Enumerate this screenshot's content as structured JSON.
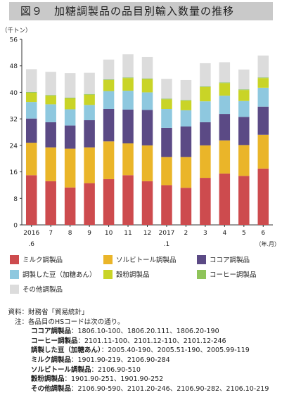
{
  "title": "図９　加糖調製品の品目別輸入数量の推移",
  "chart_data": {
    "type": "bar",
    "stacked": true,
    "unit_label": "（千トン）",
    "x_unit_label": "（年.月）",
    "categories": [
      "2016.6",
      "7",
      "8",
      "9",
      "10",
      "11",
      "12",
      "2017.1",
      "2",
      "3",
      "4",
      "5",
      "6"
    ],
    "tick_labels": [
      {
        "main": "2016",
        "sub": ".6"
      },
      {
        "main": "7",
        "sub": ""
      },
      {
        "main": "8",
        "sub": ""
      },
      {
        "main": "9",
        "sub": ""
      },
      {
        "main": "10",
        "sub": ""
      },
      {
        "main": "11",
        "sub": ""
      },
      {
        "main": "12",
        "sub": ""
      },
      {
        "main": "2017",
        "sub": ".1"
      },
      {
        "main": "2",
        "sub": ""
      },
      {
        "main": "3",
        "sub": ""
      },
      {
        "main": "4",
        "sub": ""
      },
      {
        "main": "5",
        "sub": ""
      },
      {
        "main": "6",
        "sub": ""
      }
    ],
    "ylim": [
      0,
      56
    ],
    "yticks": [
      0,
      8,
      16,
      24,
      32,
      40,
      48,
      56
    ],
    "grid": false,
    "series": [
      {
        "name": "ミルク調製品",
        "color": "#cd4b4e",
        "values": [
          15.0,
          13.2,
          11.3,
          12.6,
          13.8,
          15.0,
          13.2,
          12.0,
          11.2,
          14.2,
          15.5,
          14.8,
          17.0
        ]
      },
      {
        "name": "ソルビトール調製品",
        "color": "#eab529",
        "values": [
          9.8,
          10.2,
          11.7,
          10.8,
          11.4,
          9.6,
          10.8,
          8.5,
          9.3,
          9.8,
          10.0,
          9.3,
          10.2
        ]
      },
      {
        "name": "ココア調製品",
        "color": "#5b4a85",
        "values": [
          7.3,
          7.6,
          7.0,
          8.2,
          9.8,
          10.2,
          10.7,
          8.8,
          9.2,
          7.0,
          8.0,
          8.5,
          8.5
        ]
      },
      {
        "name": "調製した豆（加糖あん）",
        "color": "#8ec8df",
        "values": [
          5.0,
          5.4,
          4.9,
          4.6,
          5.4,
          5.7,
          5.3,
          5.7,
          4.9,
          6.3,
          5.5,
          4.8,
          5.7
        ]
      },
      {
        "name": "穀粉調製品",
        "color": "#c9d427",
        "values": [
          2.8,
          2.6,
          3.3,
          3.1,
          3.3,
          3.8,
          4.0,
          2.9,
          2.9,
          4.3,
          3.8,
          3.3,
          2.9
        ]
      },
      {
        "name": "コーヒー調製品",
        "color": "#8fc45a",
        "values": [
          0.2,
          0.2,
          0.2,
          0.2,
          0.2,
          0.2,
          0.2,
          0.2,
          0.2,
          0.2,
          0.2,
          0.2,
          0.2
        ]
      },
      {
        "name": "その他調製品",
        "color": "#dcdcdc",
        "values": [
          6.9,
          7.0,
          7.4,
          6.4,
          6.0,
          7.0,
          6.5,
          6.0,
          6.0,
          7.0,
          6.1,
          6.0,
          6.6
        ]
      }
    ]
  },
  "source": {
    "label": "資料：",
    "text": "財務省「貿易統計」",
    "note_label": "注：",
    "note_intro": "各品目のHSコードは次の通り。",
    "hs_codes": [
      {
        "name": "ココア調製品",
        "codes": "：1806.10-100、1806.20.111、1806.20-190"
      },
      {
        "name": "コーヒー調製品",
        "codes": "：2101.11-100、2101.12-110、2101.12-246"
      },
      {
        "name": "調製した豆（加糖あん）",
        "codes": "：2005.40-190、2005.51-190、2005.99-119"
      },
      {
        "name": "ミルク調製品",
        "codes": "：1901.90-219、2106.90-284"
      },
      {
        "name": "ソルビトール調製品",
        "codes": "：2106.90-510"
      },
      {
        "name": "穀粉調製品",
        "codes": "：1901.90-251、1901.90-252"
      },
      {
        "name": "その他調製品",
        "codes": "：2106.90-590、2101.20-246、2106.90-282、2106.10-219"
      }
    ]
  }
}
